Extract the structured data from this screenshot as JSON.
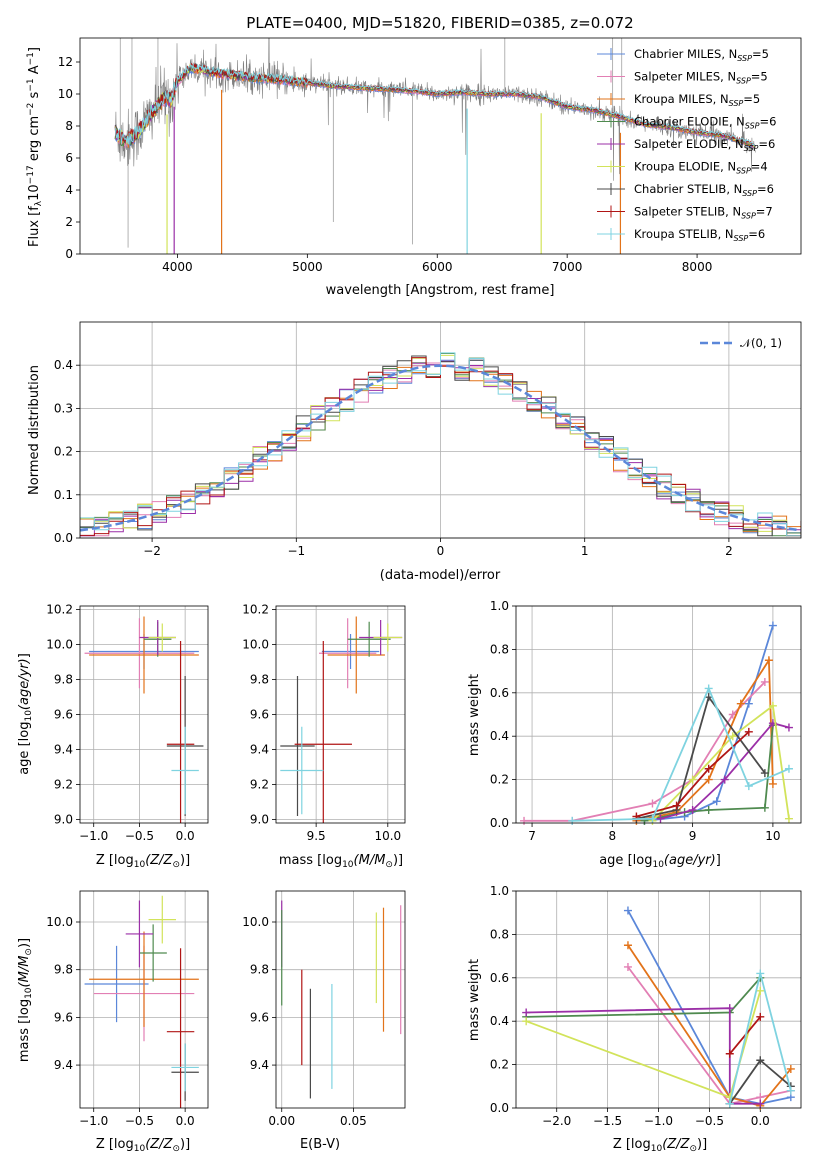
{
  "colors": {
    "Chabrier MILES": "#5b87d9",
    "Salpeter MILES": "#e27fb4",
    "Kroupa MILES": "#e2731a",
    "Chabrier ELODIE": "#4f8a4f",
    "Salpeter ELODIE": "#9b2fa7",
    "Kroupa ELODIE": "#d2e35a",
    "Chabrier STELIB": "#4a4a4a",
    "Salpeter STELIB": "#b01515",
    "Kroupa STELIB": "#7fd3e0",
    "gaussian": "#5b87d9",
    "data": "#808080"
  },
  "chart_data": [
    {
      "id": "spectrum",
      "type": "line",
      "title": "PLATE=0400, MJD=51820, FIBERID=0385, z=0.072",
      "xlabel": "wavelength [Angstrom, rest frame]",
      "ylabel": "Flux [f",
      "ylabel_parts": [
        "Flux [f",
        "λ",
        "10",
        "−17",
        " erg cm",
        "−2",
        " s",
        "−1",
        " A",
        "−1",
        "]"
      ],
      "xlim": [
        3250,
        8800
      ],
      "ylim": [
        0,
        13.5
      ],
      "xticks": [
        4000,
        5000,
        6000,
        7000,
        8000
      ],
      "yticks": [
        0,
        2,
        4,
        6,
        8,
        10,
        12
      ],
      "grid": false,
      "legend_position": "top-right",
      "continuum": {
        "x": [
          3520,
          3600,
          3700,
          3800,
          3900,
          3950,
          4000,
          4100,
          4200,
          4300,
          4400,
          4600,
          4800,
          5000,
          5200,
          5400,
          5600,
          5800,
          6000,
          6200,
          6400,
          6600,
          6800,
          7000,
          7200,
          7400,
          7600,
          7800,
          8000,
          8200,
          8400,
          8450
        ],
        "y": [
          7.6,
          7.0,
          7.6,
          8.8,
          9.8,
          9.6,
          10.8,
          11.6,
          11.5,
          11.3,
          11.2,
          11.0,
          10.9,
          10.7,
          10.5,
          10.4,
          10.3,
          10.2,
          10.0,
          10.1,
          10.0,
          10.0,
          9.8,
          9.2,
          9.0,
          8.6,
          8.1,
          7.9,
          7.6,
          7.4,
          6.9,
          6.7
        ]
      },
      "legend": [
        {
          "name": "Chabrier MILES, N",
          "sub": "SSP",
          "tail": "=5"
        },
        {
          "name": "Salpeter MILES, N",
          "sub": "SSP",
          "tail": "=5"
        },
        {
          "name": "Kroupa MILES, N",
          "sub": "SSP",
          "tail": "=5"
        },
        {
          "name": "Chabrier ELODIE, N",
          "sub": "SSP",
          "tail": "=6"
        },
        {
          "name": "Salpeter ELODIE, N",
          "sub": "SSP",
          "tail": "=6"
        },
        {
          "name": "Kroupa ELODIE, N",
          "sub": "SSP",
          "tail": "=4"
        },
        {
          "name": "Chabrier STELIB, N",
          "sub": "SSP",
          "tail": "=6"
        },
        {
          "name": "Salpeter STELIB, N",
          "sub": "SSP",
          "tail": "=7"
        },
        {
          "name": "Kroupa STELIB, N",
          "sub": "SSP",
          "tail": "=6"
        }
      ]
    },
    {
      "id": "residuals",
      "type": "line",
      "xlabel": "(data-model)/error",
      "ylabel": "Normed distribution",
      "xlim": [
        -2.5,
        2.5
      ],
      "ylim": [
        0,
        0.5
      ],
      "xticks": [
        -2,
        -1,
        0,
        1,
        2
      ],
      "yticks": [
        0.0,
        0.1,
        0.2,
        0.3,
        0.4
      ],
      "grid": true,
      "legend_position": "top-right",
      "legend": [
        "𝒩(0, 1)"
      ],
      "bin_width": 0.1
    },
    {
      "id": "age-vs-Z",
      "type": "scatter",
      "xlabel": "Z [log",
      "ylabel": "age  [log",
      "xlim": [
        -1.15,
        0.25
      ],
      "ylim": [
        8.98,
        10.22
      ],
      "xticks": [
        -1.0,
        -0.5,
        0.0
      ],
      "yticks": [
        9.0,
        9.2,
        9.4,
        9.6,
        9.8,
        10.0,
        10.2
      ],
      "grid": true,
      "points": [
        {
          "model": "Chabrier MILES",
          "x": -0.45,
          "y": 9.96,
          "xerr": 0.6,
          "yerr": 0.1
        },
        {
          "model": "Salpeter MILES",
          "x": -0.5,
          "y": 9.95,
          "xerr": 0.6,
          "yerr": 0.2
        },
        {
          "model": "Kroupa MILES",
          "x": -0.45,
          "y": 9.94,
          "xerr": 0.6,
          "yerr": 0.22
        },
        {
          "model": "Chabrier ELODIE",
          "x": -0.3,
          "y": 10.03,
          "xerr": 0.15,
          "yerr": 0.1
        },
        {
          "model": "Salpeter ELODIE",
          "x": -0.3,
          "y": 10.04,
          "xerr": 0.2,
          "yerr": 0.1
        },
        {
          "model": "Kroupa ELODIE",
          "x": -0.25,
          "y": 10.04,
          "xerr": 0.15,
          "yerr": 0.08
        },
        {
          "model": "Chabrier STELIB",
          "x": 0.0,
          "y": 9.42,
          "xerr": 0.2,
          "yerr": 0.4
        },
        {
          "model": "Salpeter STELIB",
          "x": -0.05,
          "y": 9.43,
          "xerr": 0.15,
          "yerr": 0.59
        },
        {
          "model": "Kroupa STELIB",
          "x": 0.0,
          "y": 9.28,
          "xerr": 0.15,
          "yerr": 0.25
        }
      ]
    },
    {
      "id": "age-vs-mass",
      "type": "scatter",
      "xlabel": "mass [log",
      "xlim": [
        9.22,
        10.12
      ],
      "ylim": [
        8.98,
        10.22
      ],
      "xticks": [
        9.5,
        10.0
      ],
      "yticks": [
        9.0,
        9.2,
        9.4,
        9.6,
        9.8,
        10.0,
        10.2
      ],
      "grid": true,
      "points": [
        {
          "model": "Chabrier MILES",
          "x": 9.74,
          "y": 9.96,
          "xerr": 0.2,
          "yerr": 0.1
        },
        {
          "model": "Salpeter MILES",
          "x": 9.72,
          "y": 9.95,
          "xerr": 0.2,
          "yerr": 0.2
        },
        {
          "model": "Kroupa MILES",
          "x": 9.78,
          "y": 9.94,
          "xerr": 0.2,
          "yerr": 0.22
        },
        {
          "model": "Chabrier ELODIE",
          "x": 9.87,
          "y": 10.03,
          "xerr": 0.15,
          "yerr": 0.1
        },
        {
          "model": "Salpeter ELODIE",
          "x": 9.95,
          "y": 10.04,
          "xerr": 0.15,
          "yerr": 0.1
        },
        {
          "model": "Kroupa ELODIE",
          "x": 10.0,
          "y": 10.04,
          "xerr": 0.1,
          "yerr": 0.08
        },
        {
          "model": "Chabrier STELIB",
          "x": 9.37,
          "y": 9.42,
          "xerr": 0.12,
          "yerr": 0.4
        },
        {
          "model": "Salpeter STELIB",
          "x": 9.55,
          "y": 9.43,
          "xerr": 0.2,
          "yerr": 0.59
        },
        {
          "model": "Kroupa STELIB",
          "x": 9.4,
          "y": 9.28,
          "xerr": 0.15,
          "yerr": 0.25
        }
      ]
    },
    {
      "id": "weight-vs-age",
      "type": "line",
      "xlabel": "age  [log",
      "ylabel": "mass weight",
      "xlim": [
        6.8,
        10.35
      ],
      "ylim": [
        0,
        1.0
      ],
      "xticks": [
        7,
        8,
        9,
        10
      ],
      "yticks": [
        0.0,
        0.2,
        0.4,
        0.6,
        0.8,
        1.0
      ],
      "grid": true,
      "series": [
        {
          "model": "Chabrier MILES",
          "x": [
            8.4,
            8.9,
            9.3,
            9.7,
            10.0
          ],
          "y": [
            0.01,
            0.03,
            0.1,
            0.55,
            0.91
          ]
        },
        {
          "model": "Salpeter MILES",
          "x": [
            6.9,
            7.5,
            8.5,
            9.0,
            9.5,
            9.9
          ],
          "y": [
            0.01,
            0.01,
            0.09,
            0.2,
            0.5,
            0.65
          ]
        },
        {
          "model": "Kroupa MILES",
          "x": [
            8.3,
            8.8,
            9.2,
            9.6,
            9.95,
            10.0
          ],
          "y": [
            0.01,
            0.05,
            0.2,
            0.55,
            0.75,
            0.18
          ]
        },
        {
          "model": "Chabrier ELODIE",
          "x": [
            8.4,
            8.9,
            9.2,
            9.9,
            10.0
          ],
          "y": [
            0.01,
            0.05,
            0.06,
            0.07,
            0.45
          ]
        },
        {
          "model": "Salpeter ELODIE",
          "x": [
            8.6,
            9.0,
            9.4,
            10.0,
            10.2
          ],
          "y": [
            0.02,
            0.06,
            0.2,
            0.46,
            0.44
          ]
        },
        {
          "model": "Kroupa ELODIE",
          "x": [
            8.5,
            9.0,
            9.5,
            10.0,
            10.2
          ],
          "y": [
            0.01,
            0.2,
            0.4,
            0.54,
            0.02
          ]
        },
        {
          "model": "Chabrier STELIB",
          "x": [
            8.3,
            8.8,
            9.2,
            9.9
          ],
          "y": [
            0.02,
            0.06,
            0.58,
            0.23
          ]
        },
        {
          "model": "Salpeter STELIB",
          "x": [
            8.3,
            8.8,
            9.2,
            9.7
          ],
          "y": [
            0.03,
            0.08,
            0.25,
            0.42
          ]
        },
        {
          "model": "Kroupa STELIB",
          "x": [
            7.5,
            8.5,
            9.2,
            9.7,
            10.2
          ],
          "y": [
            0.01,
            0.02,
            0.62,
            0.17,
            0.25
          ]
        }
      ]
    },
    {
      "id": "mass-vs-Z",
      "type": "scatter",
      "xlabel": "Z [log",
      "ylabel": "mass [log",
      "xlim": [
        -1.15,
        0.25
      ],
      "ylim": [
        9.22,
        10.13
      ],
      "xticks": [
        -1.0,
        -0.5,
        0.0
      ],
      "yticks": [
        9.4,
        9.6,
        9.8,
        10.0
      ],
      "grid": true,
      "points": [
        {
          "model": "Chabrier MILES",
          "x": -0.75,
          "y": 9.74,
          "xerr": 0.35,
          "yerr": 0.16
        },
        {
          "model": "Salpeter MILES",
          "x": -0.45,
          "y": 9.7,
          "xerr": 0.55,
          "yerr": 0.2
        },
        {
          "model": "Kroupa MILES",
          "x": -0.45,
          "y": 9.76,
          "xerr": 0.6,
          "yerr": 0.2
        },
        {
          "model": "Chabrier ELODIE",
          "x": -0.35,
          "y": 9.87,
          "xerr": 0.15,
          "yerr": 0.12
        },
        {
          "model": "Salpeter ELODIE",
          "x": -0.5,
          "y": 9.95,
          "xerr": 0.15,
          "yerr": 0.14
        },
        {
          "model": "Kroupa ELODIE",
          "x": -0.25,
          "y": 10.01,
          "xerr": 0.15,
          "yerr": 0.1
        },
        {
          "model": "Chabrier STELIB",
          "x": 0.0,
          "y": 9.37,
          "xerr": 0.15,
          "yerr": 0.12
        },
        {
          "model": "Salpeter STELIB",
          "x": -0.05,
          "y": 9.54,
          "xerr": 0.15,
          "yerr": 0.35
        },
        {
          "model": "Kroupa STELIB",
          "x": 0.0,
          "y": 9.39,
          "xerr": 0.15,
          "yerr": 0.1
        }
      ]
    },
    {
      "id": "mass-vs-ebv",
      "type": "scatter",
      "xlabel": "E(B-V)",
      "xlim": [
        -0.004,
        0.086
      ],
      "ylim": [
        9.22,
        10.13
      ],
      "xticks": [
        0.0,
        0.05
      ],
      "yticks": [
        9.4,
        9.6,
        9.8,
        10.0
      ],
      "grid": true,
      "points": [
        {
          "model": "Salpeter ELODIE",
          "x": 0.0,
          "y": 9.95,
          "yerr": 0.14
        },
        {
          "model": "Chabrier ELODIE",
          "x": 0.0,
          "y": 9.85,
          "yerr": 0.2
        },
        {
          "model": "Salpeter STELIB",
          "x": 0.014,
          "y": 9.6,
          "yerr": 0.2
        },
        {
          "model": "Chabrier STELIB",
          "x": 0.02,
          "y": 9.49,
          "yerr": 0.23
        },
        {
          "model": "Kroupa STELIB",
          "x": 0.035,
          "y": 9.52,
          "yerr": 0.22
        },
        {
          "model": "Kroupa ELODIE",
          "x": 0.066,
          "y": 9.85,
          "yerr": 0.19
        },
        {
          "model": "Kroupa MILES",
          "x": 0.071,
          "y": 9.8,
          "yerr": 0.26
        },
        {
          "model": "Salpeter MILES",
          "x": 0.083,
          "y": 9.8,
          "yerr": 0.27
        }
      ]
    },
    {
      "id": "weight-vs-Z",
      "type": "line",
      "xlabel": "Z [log",
      "ylabel": "mass weight",
      "xlim": [
        -2.4,
        0.4
      ],
      "ylim": [
        0,
        1.0
      ],
      "xticks": [
        -2.0,
        -1.5,
        -1.0,
        -0.5,
        0.0
      ],
      "yticks": [
        0.0,
        0.2,
        0.4,
        0.6,
        0.8,
        1.0
      ],
      "grid": true,
      "series": [
        {
          "model": "Chabrier MILES",
          "x": [
            -1.3,
            -0.3,
            0.0,
            0.3
          ],
          "y": [
            0.91,
            0.05,
            0.02,
            0.05
          ]
        },
        {
          "model": "Salpeter MILES",
          "x": [
            -1.3,
            -0.3,
            0.0,
            0.3
          ],
          "y": [
            0.65,
            0.02,
            0.05,
            0.08
          ]
        },
        {
          "model": "Kroupa MILES",
          "x": [
            -1.3,
            -0.3,
            0.0,
            0.3
          ],
          "y": [
            0.75,
            0.05,
            0.01,
            0.18
          ]
        },
        {
          "model": "Chabrier ELODIE",
          "x": [
            -2.3,
            -0.3,
            0.0
          ],
          "y": [
            0.42,
            0.44,
            0.6
          ]
        },
        {
          "model": "Salpeter ELODIE",
          "x": [
            -2.3,
            -0.3,
            -0.3,
            0.0
          ],
          "y": [
            0.44,
            0.46,
            0.02,
            0.02
          ]
        },
        {
          "model": "Kroupa ELODIE",
          "x": [
            -2.3,
            -0.3,
            0.0
          ],
          "y": [
            0.4,
            0.05,
            0.54
          ]
        },
        {
          "model": "Chabrier STELIB",
          "x": [
            -0.3,
            0.0,
            0.3
          ],
          "y": [
            0.02,
            0.22,
            0.1
          ]
        },
        {
          "model": "Salpeter STELIB",
          "x": [
            -0.3,
            0.0
          ],
          "y": [
            0.25,
            0.42
          ]
        },
        {
          "model": "Kroupa STELIB",
          "x": [
            -0.3,
            0.0,
            0.3
          ],
          "y": [
            0.02,
            0.62,
            0.08
          ]
        }
      ]
    }
  ]
}
